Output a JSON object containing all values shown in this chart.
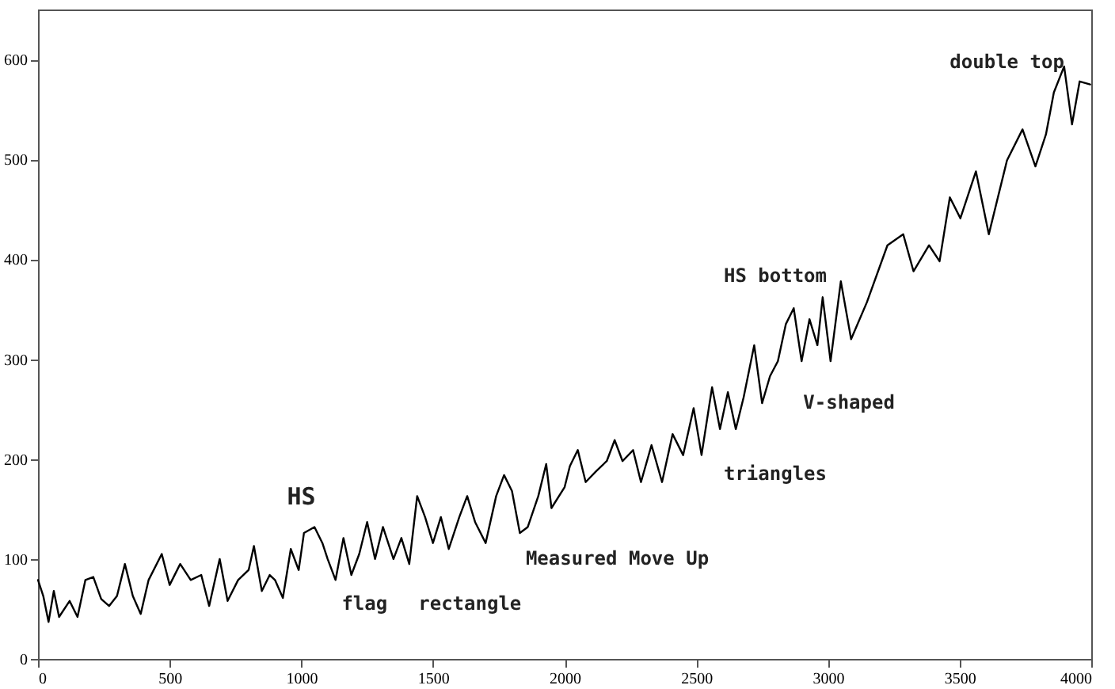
{
  "chart_data": {
    "type": "line",
    "xlim": [
      0,
      4000
    ],
    "ylim": [
      0,
      650
    ],
    "xticks": [
      0,
      500,
      1000,
      1500,
      2000,
      2500,
      3000,
      3500,
      4000
    ],
    "yticks": [
      0,
      100,
      200,
      300,
      400,
      500,
      600
    ],
    "grid": false,
    "line_style": "solid",
    "marker": "none",
    "series": [
      {
        "color": "#000000",
        "x": [
          0,
          20,
          40,
          60,
          80,
          120,
          150,
          180,
          210,
          240,
          270,
          300,
          330,
          360,
          390,
          420,
          470,
          500,
          540,
          580,
          620,
          650,
          690,
          720,
          760,
          800,
          820,
          850,
          880,
          900,
          930,
          960,
          990,
          1010,
          1050,
          1080,
          1100,
          1130,
          1160,
          1190,
          1220,
          1250,
          1280,
          1310,
          1350,
          1380,
          1410,
          1440,
          1470,
          1500,
          1530,
          1560,
          1600,
          1630,
          1660,
          1700,
          1740,
          1770,
          1800,
          1830,
          1860,
          1900,
          1930,
          1950,
          2000,
          2020,
          2050,
          2080,
          2120,
          2160,
          2190,
          2220,
          2260,
          2290,
          2330,
          2370,
          2410,
          2450,
          2490,
          2520,
          2560,
          2590,
          2620,
          2650,
          2680,
          2720,
          2750,
          2780,
          2810,
          2840,
          2870,
          2900,
          2930,
          2960,
          2980,
          3010,
          3049,
          3088,
          3148,
          3226,
          3286,
          3325,
          3384,
          3424,
          3463,
          3503,
          3562,
          3611,
          3680,
          3739,
          3788,
          3828,
          3858,
          3897,
          3927,
          3956,
          3996
        ],
        "values": [
          79,
          63,
          37,
          68,
          42,
          58,
          42,
          79,
          82,
          60,
          53,
          63,
          95,
          63,
          45,
          79,
          105,
          74,
          95,
          79,
          84,
          53,
          100,
          58,
          79,
          89,
          113,
          68,
          84,
          79,
          61,
          110,
          89,
          126,
          132,
          116,
          100,
          79,
          121,
          84,
          105,
          137,
          100,
          132,
          100,
          121,
          95,
          163,
          142,
          116,
          142,
          110,
          142,
          163,
          137,
          116,
          163,
          184,
          168,
          126,
          132,
          163,
          195,
          151,
          172,
          193,
          209,
          177,
          188,
          198,
          219,
          198,
          209,
          177,
          214,
          177,
          225,
          204,
          251,
          204,
          272,
          230,
          267,
          230,
          262,
          314,
          256,
          283,
          298,
          335,
          351,
          298,
          340,
          314,
          362,
          298,
          378,
          320,
          357,
          414,
          425,
          388,
          414,
          398,
          462,
          441,
          488,
          425,
          499,
          530,
          493,
          525,
          567,
          593,
          535,
          578,
          575
        ]
      }
    ],
    "annotations": [
      "HS",
      "flag",
      "rectangle",
      "Measured Move Up",
      "triangles",
      "HS bottom",
      "V-shaped",
      "double top"
    ]
  }
}
